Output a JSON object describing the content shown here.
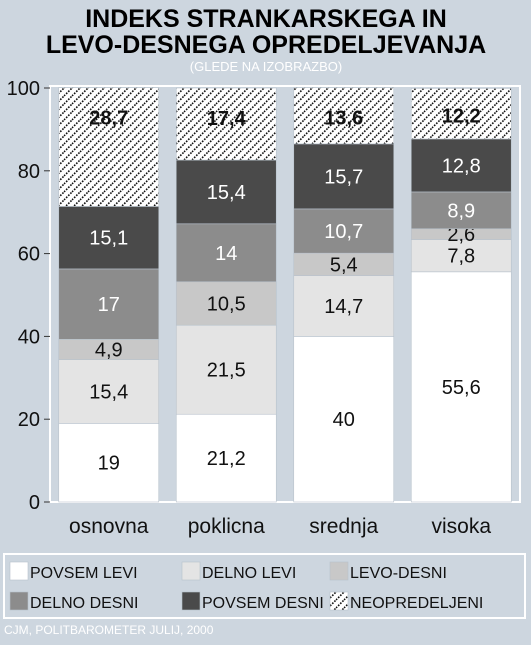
{
  "chart_data": {
    "type": "bar",
    "stacked": true,
    "title": "INDEKS STRANKARSKEGA IN",
    "title2": "LEVO-DESNEGA OPREDELJEVANJA",
    "subtitle": "(GLEDE NA IZOBRAZBO)",
    "source": "CJM, POLITBAROMETER JULIJ, 2000",
    "ylim": [
      0,
      100
    ],
    "yticks": [
      "0",
      "20",
      "40",
      "60",
      "80",
      "100"
    ],
    "grid": false,
    "legend_position": "bottom",
    "categories": [
      "osnovna",
      "poklicna",
      "srednja",
      "visoka"
    ],
    "series": [
      {
        "name": "POVSEM LEVI",
        "values": [
          19,
          21.2,
          40,
          55.6
        ],
        "labels": [
          "19",
          "21,2",
          "40",
          "55,6"
        ],
        "color": "#ffffff"
      },
      {
        "name": "DELNO LEVI",
        "values": [
          15.4,
          21.5,
          14.7,
          7.8
        ],
        "labels": [
          "15,4",
          "21,5",
          "14,7",
          "7,8"
        ],
        "color": "#e4e4e4"
      },
      {
        "name": "LEVO-DESNI",
        "values": [
          4.9,
          10.5,
          5.4,
          2.6
        ],
        "labels": [
          "4,9",
          "10,5",
          "5,4",
          "2,6"
        ],
        "color": "#c8c8c8"
      },
      {
        "name": "DELNO DESNI",
        "values": [
          17,
          14,
          10.7,
          8.9
        ],
        "labels": [
          "17",
          "14",
          "10,7",
          "8,9"
        ],
        "color": "#8c8c8c"
      },
      {
        "name": "POVSEM DESNI",
        "values": [
          15.1,
          15.4,
          15.7,
          12.8
        ],
        "labels": [
          "15,1",
          "15,4",
          "15,7",
          "12,8"
        ],
        "color": "#4a4a4a"
      },
      {
        "name": "NEOPREDELJENI",
        "values": [
          28.7,
          17.4,
          13.6,
          12.2
        ],
        "labels": [
          "28,7",
          "17,4",
          "13,6",
          "12,2"
        ],
        "color": "pattern"
      }
    ]
  }
}
